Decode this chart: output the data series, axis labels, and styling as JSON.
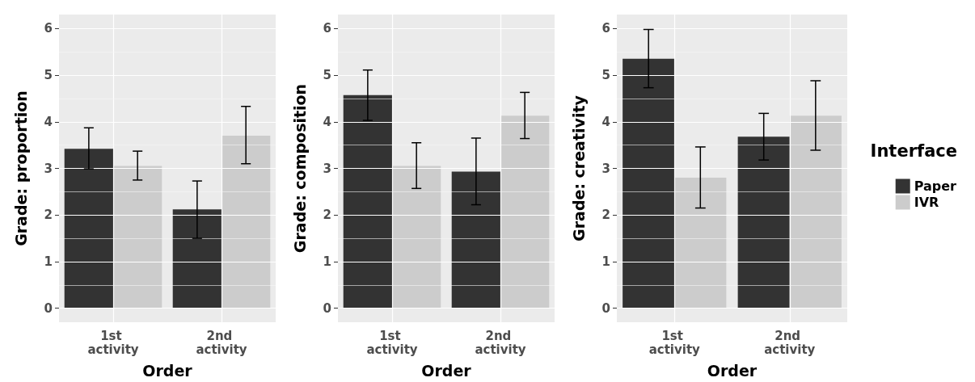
{
  "chart_data": [
    {
      "type": "bar",
      "xlabel": "Order",
      "ylabel": "Grade: proportion",
      "categories": [
        "1st activity",
        "2nd activity"
      ],
      "series": [
        {
          "color": "#333333",
          "values": [
            3.42,
            2.12
          ],
          "errors": [
            [
              2.99,
              3.87
            ],
            [
              1.5,
              2.73
            ]
          ]
        },
        {
          "color": "#cccccc",
          "values": [
            3.05,
            3.7
          ],
          "errors": [
            [
              2.75,
              3.37
            ],
            [
              3.1,
              4.33
            ]
          ]
        }
      ],
      "ylim": [
        -0.3,
        6.3
      ],
      "yticks": [
        0,
        1,
        2,
        3,
        4,
        5,
        6
      ],
      "grid": true
    },
    {
      "type": "bar",
      "xlabel": "Order",
      "ylabel": "Grade: composition",
      "categories": [
        "1st activity",
        "2nd activity"
      ],
      "series": [
        {
          "color": "#333333",
          "values": [
            4.57,
            2.93
          ],
          "errors": [
            [
              4.03,
              5.11
            ],
            [
              2.22,
              3.65
            ]
          ]
        },
        {
          "color": "#cccccc",
          "values": [
            3.05,
            4.13
          ],
          "errors": [
            [
              2.57,
              3.55
            ],
            [
              3.64,
              4.63
            ]
          ]
        }
      ],
      "ylim": [
        -0.3,
        6.3
      ],
      "yticks": [
        0,
        1,
        2,
        3,
        4,
        5,
        6
      ],
      "grid": true
    },
    {
      "type": "bar",
      "xlabel": "Order",
      "ylabel": "Grade: creativity",
      "legend_title": "Interface",
      "legend": "right",
      "categories": [
        "1st activity",
        "2nd activity"
      ],
      "series": [
        {
          "name": "Paper",
          "color": "#333333",
          "values": [
            5.35,
            3.68
          ],
          "errors": [
            [
              4.73,
              5.98
            ],
            [
              3.18,
              4.18
            ]
          ]
        },
        {
          "name": "IVR",
          "color": "#cccccc",
          "values": [
            2.8,
            4.13
          ],
          "errors": [
            [
              2.15,
              3.46
            ],
            [
              3.39,
              4.88
            ]
          ]
        }
      ],
      "ylim": [
        -0.3,
        6.3
      ],
      "yticks": [
        0,
        1,
        2,
        3,
        4,
        5,
        6
      ],
      "grid": true
    }
  ]
}
